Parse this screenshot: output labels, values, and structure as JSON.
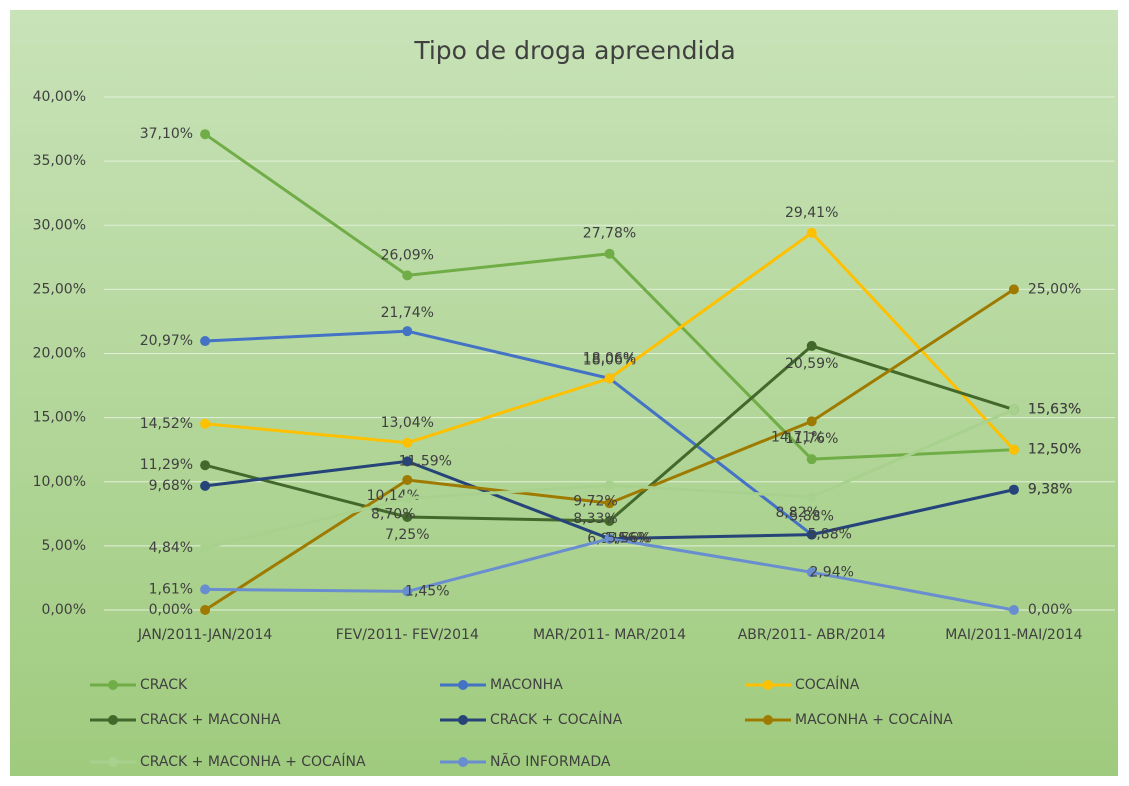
{
  "chart_data": {
    "type": "line",
    "title": "Tipo de droga apreendida",
    "categories": [
      "JAN/2011-JAN/2014",
      "FEV/2011- FEV/2014",
      "MAR/2011- MAR/2014",
      "ABR/2011- ABR/2014",
      "MAI/2011-MAI/2014"
    ],
    "ylim": [
      0,
      40
    ],
    "yticks": [
      {
        "value": 0,
        "label": "0,00%"
      },
      {
        "value": 5,
        "label": "5,00%"
      },
      {
        "value": 10,
        "label": "10,00%"
      },
      {
        "value": 15,
        "label": "15,00%"
      },
      {
        "value": 20,
        "label": "20,00%"
      },
      {
        "value": 25,
        "label": "25,00%"
      },
      {
        "value": 30,
        "label": "30,00%"
      },
      {
        "value": 35,
        "label": "35,00%"
      },
      {
        "value": 40,
        "label": "40,00%"
      }
    ],
    "grid": true,
    "legend": "bottom",
    "series": [
      {
        "name": "CRACK",
        "color": "#70ad47",
        "values": [
          37.1,
          26.09,
          27.78,
          11.76,
          12.5
        ],
        "value_labels": [
          "37,10%",
          "26,09%",
          "27,78%",
          "11,76%",
          "12,50%"
        ]
      },
      {
        "name": "MACONHA",
        "color": "#4472c4",
        "values": [
          20.97,
          21.74,
          18.06,
          5.88,
          9.38
        ],
        "value_labels": [
          "20,97%",
          "21,74%",
          "18,06%",
          "5,88%",
          "9,38%"
        ]
      },
      {
        "name": "COCAÍNA",
        "color": "#ffc000",
        "values": [
          14.52,
          13.04,
          18.06,
          29.41,
          12.5
        ],
        "value_labels": [
          "14,52%",
          "13,04%",
          "18,06%",
          "29,41%",
          "12,50%"
        ]
      },
      {
        "name": "CRACK + MACONHA",
        "color": "#43682b",
        "values": [
          11.29,
          7.25,
          6.94,
          20.59,
          15.63
        ],
        "value_labels": [
          "11,29%",
          "7,25%",
          "6,94%",
          "20,59%",
          "15,63%"
        ]
      },
      {
        "name": "CRACK + COCAÍNA",
        "color": "#264478",
        "values": [
          9.68,
          11.59,
          5.56,
          5.88,
          9.38
        ],
        "value_labels": [
          "9,68%",
          "11,59%",
          "5,56%",
          "5,88%",
          "9,38%"
        ]
      },
      {
        "name": "MACONHA + COCAÍNA",
        "color": "#9e7b00",
        "values": [
          0.0,
          10.14,
          8.33,
          14.71,
          25.0
        ],
        "value_labels": [
          "0,00%",
          "10,14%",
          "8,33%",
          "14,71%",
          "25,00%"
        ]
      },
      {
        "name": "CRACK + MACONHA + COCAÍNA",
        "color": "#a9d18e",
        "values": [
          4.84,
          8.7,
          9.72,
          8.82,
          15.63
        ],
        "value_labels": [
          "4,84%",
          "8,70%",
          "9,72%",
          "8,82%",
          "15,63%"
        ]
      },
      {
        "name": "NÃO INFORMADA",
        "color": "#698ed0",
        "values": [
          1.61,
          1.45,
          5.56,
          2.94,
          0.0
        ],
        "value_labels": [
          "1,61%",
          "1,45%",
          "5,56%",
          "2,94%",
          "0,00%"
        ]
      }
    ]
  }
}
